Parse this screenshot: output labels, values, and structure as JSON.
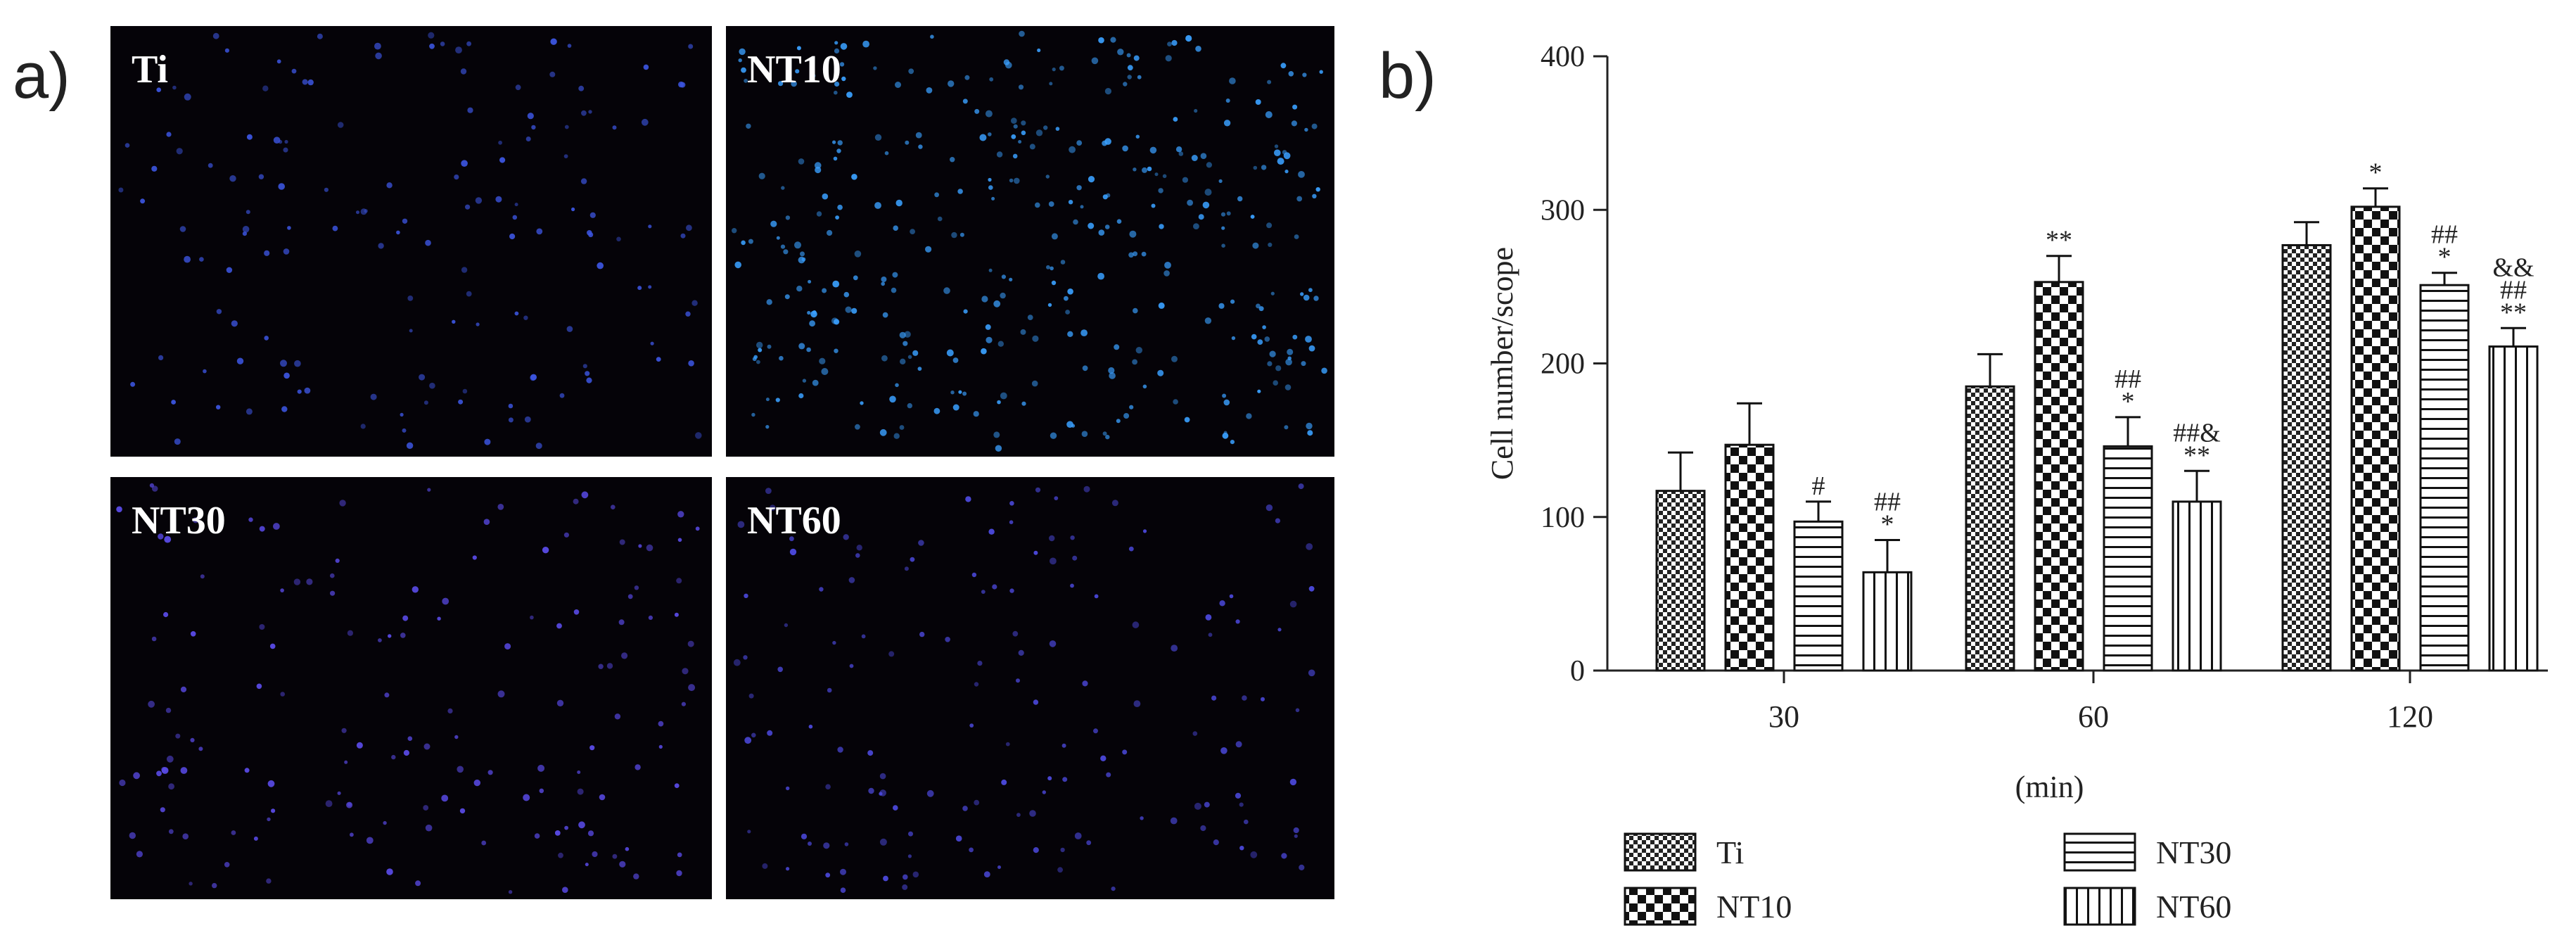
{
  "panels": {
    "a_label": "a)",
    "b_label": "b)"
  },
  "micrographs": [
    {
      "label": "Ti",
      "cell_density": "low",
      "cell_color": "#3c55e0"
    },
    {
      "label": "NT10",
      "cell_density": "high",
      "cell_color": "#3aa0ff"
    },
    {
      "label": "NT30",
      "cell_density": "low",
      "cell_color": "#5a4be8"
    },
    {
      "label": "NT60",
      "cell_density": "low",
      "cell_color": "#4d4ae0"
    }
  ],
  "chart_data": {
    "type": "bar",
    "categories": [
      "30",
      "60",
      "120"
    ],
    "xlabel": "(min)",
    "ylabel": "Cell number/scope",
    "ylim": [
      0,
      400
    ],
    "yticks": [
      0,
      100,
      200,
      300,
      400
    ],
    "grid": false,
    "legend_position": "bottom",
    "series": [
      {
        "name": "Ti",
        "pattern": "fine-checker",
        "values": [
          117,
          185,
          277
        ],
        "errors": [
          25,
          21,
          15
        ],
        "annotations": [
          "",
          "",
          ""
        ]
      },
      {
        "name": "NT10",
        "pattern": "checker",
        "values": [
          147,
          253,
          302
        ],
        "errors": [
          27,
          17,
          12
        ],
        "annotations": [
          "",
          "**",
          "*"
        ]
      },
      {
        "name": "NT30",
        "pattern": "horizontal-lines",
        "values": [
          97,
          146,
          251
        ],
        "errors": [
          13,
          19,
          8
        ],
        "annotations": [
          "#",
          "##\n*",
          "##\n*"
        ]
      },
      {
        "name": "NT60",
        "pattern": "vertical-lines",
        "values": [
          64,
          110,
          211
        ],
        "errors": [
          21,
          20,
          12
        ],
        "annotations": [
          "##\n*",
          "##&\n**",
          "&&\n##\n**"
        ]
      }
    ]
  }
}
